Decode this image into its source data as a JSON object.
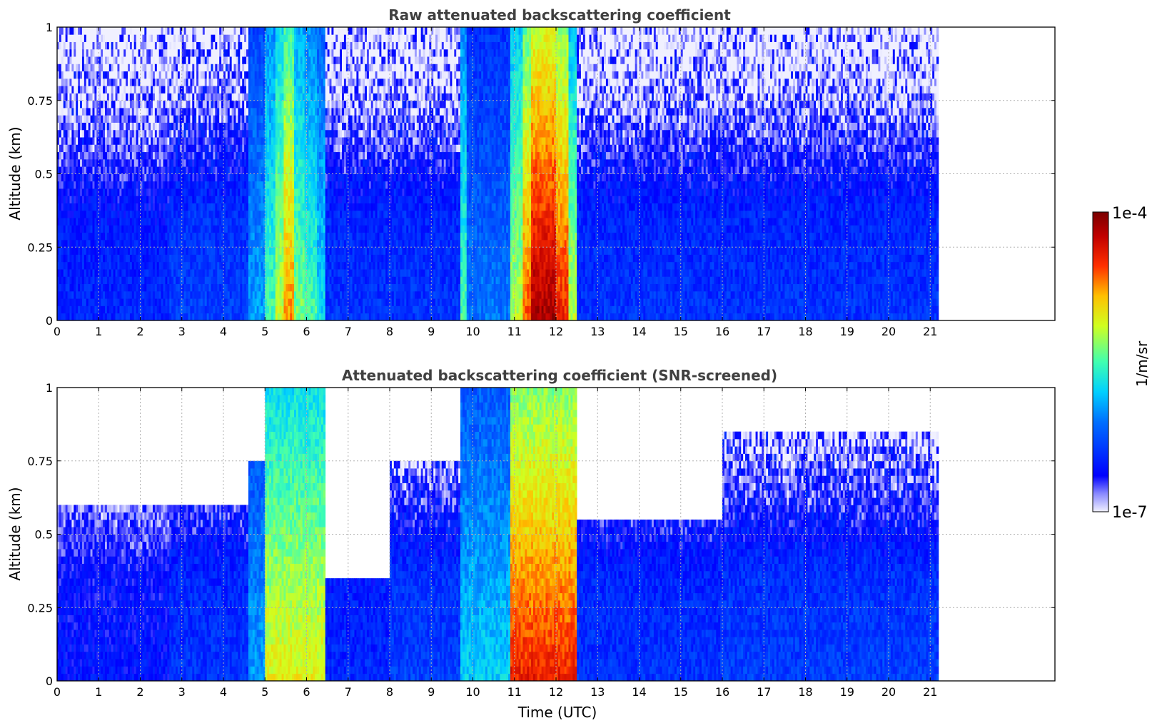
{
  "chart_data": [
    {
      "type": "heatmap",
      "title": "Raw attenuated backscattering coefficient",
      "xlabel": "",
      "ylabel": "Altitude (km)",
      "xlim": [
        0,
        24
      ],
      "ylim": [
        0,
        1
      ],
      "x_ticks": [
        "0",
        "1",
        "2",
        "3",
        "4",
        "5",
        "6",
        "7",
        "8",
        "9",
        "10",
        "11",
        "12",
        "13",
        "14",
        "15",
        "16",
        "17",
        "18",
        "19",
        "20",
        "21"
      ],
      "y_ticks": [
        "0",
        "0.25",
        "0.5",
        "0.75",
        "1"
      ],
      "data_extent_hours": [
        0,
        21.2
      ],
      "grid": true,
      "colormap": "jet",
      "bands": [
        {
          "t0": 0.0,
          "t1": 2.7,
          "level": 0.18
        },
        {
          "t0": 2.7,
          "t1": 4.6,
          "level": 0.22
        },
        {
          "t0": 4.6,
          "t1": 5.0,
          "level": 0.35
        },
        {
          "t0": 5.0,
          "t1": 5.25,
          "level": 0.5
        },
        {
          "t0": 5.25,
          "t1": 5.45,
          "level": 0.62
        },
        {
          "t0": 5.45,
          "t1": 5.7,
          "level": 0.75
        },
        {
          "t0": 5.7,
          "t1": 5.95,
          "level": 0.55
        },
        {
          "t0": 5.95,
          "t1": 6.25,
          "level": 0.5
        },
        {
          "t0": 6.25,
          "t1": 6.45,
          "level": 0.42
        },
        {
          "t0": 6.45,
          "t1": 9.7,
          "level": 0.2
        },
        {
          "t0": 9.7,
          "t1": 9.85,
          "level": 0.5
        },
        {
          "t0": 9.85,
          "t1": 10.9,
          "level": 0.3
        },
        {
          "t0": 10.9,
          "t1": 11.2,
          "level": 0.6
        },
        {
          "t0": 11.2,
          "t1": 11.4,
          "level": 0.8
        },
        {
          "t0": 11.4,
          "t1": 12.0,
          "level": 0.95
        },
        {
          "t0": 12.0,
          "t1": 12.3,
          "level": 0.85
        },
        {
          "t0": 12.3,
          "t1": 12.5,
          "level": 0.6
        },
        {
          "t0": 12.5,
          "t1": 21.2,
          "level": 0.2
        }
      ]
    },
    {
      "type": "heatmap",
      "title": "Attenuated backscattering coefficient (SNR-screened)",
      "xlabel": "Time (UTC)",
      "ylabel": "Altitude (km)",
      "xlim": [
        0,
        24
      ],
      "ylim": [
        0,
        1
      ],
      "x_ticks": [
        "0",
        "1",
        "2",
        "3",
        "4",
        "5",
        "6",
        "7",
        "8",
        "9",
        "10",
        "11",
        "12",
        "13",
        "14",
        "15",
        "16",
        "17",
        "18",
        "19",
        "20",
        "21"
      ],
      "y_ticks": [
        "0",
        "0.25",
        "0.5",
        "0.75",
        "1"
      ],
      "data_extent_hours": [
        0,
        21.2
      ],
      "grid": true,
      "colormap": "jet",
      "bands": [
        {
          "t0": 0.0,
          "t1": 2.7,
          "level": 0.15,
          "top_km": 0.6
        },
        {
          "t0": 2.7,
          "t1": 4.6,
          "level": 0.2,
          "top_km": 0.6
        },
        {
          "t0": 4.6,
          "t1": 5.0,
          "level": 0.35,
          "top_km": 0.75
        },
        {
          "t0": 5.0,
          "t1": 6.45,
          "level": 0.65,
          "top_km": 1.0
        },
        {
          "t0": 6.45,
          "t1": 8.0,
          "level": 0.18,
          "top_km": 0.35
        },
        {
          "t0": 8.0,
          "t1": 9.7,
          "level": 0.22,
          "top_km": 0.75
        },
        {
          "t0": 9.7,
          "t1": 10.9,
          "level": 0.4,
          "top_km": 1.0
        },
        {
          "t0": 10.9,
          "t1": 12.5,
          "level": 0.85,
          "top_km": 1.0
        },
        {
          "t0": 12.5,
          "t1": 16.0,
          "level": 0.2,
          "top_km": 0.55
        },
        {
          "t0": 16.0,
          "t1": 21.2,
          "level": 0.22,
          "top_km": 0.85
        }
      ]
    }
  ],
  "colorbar": {
    "label": "1/m/sr",
    "max_label": "1e-4",
    "min_label": "1e-7",
    "min": 1e-07,
    "max": 0.0001,
    "scale": "log"
  }
}
